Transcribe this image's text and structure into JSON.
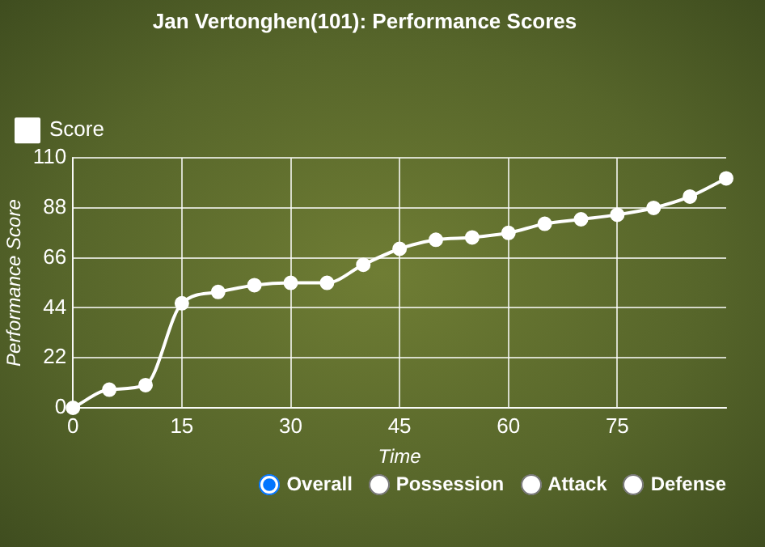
{
  "chart_data": {
    "type": "line",
    "title": "Jan Vertonghen(101): Performance Scores",
    "xlabel": "Time",
    "ylabel": "Performance Score",
    "x": [
      0,
      5,
      10,
      15,
      20,
      25,
      30,
      35,
      40,
      45,
      50,
      55,
      60,
      65,
      70,
      75,
      80,
      85,
      90
    ],
    "series": [
      {
        "name": "Score",
        "color": "#ffffff",
        "values": [
          0,
          8,
          10,
          46,
          51,
          54,
          55,
          55,
          63,
          70,
          74,
          75,
          77,
          81,
          83,
          85,
          88,
          93,
          101
        ]
      }
    ],
    "xlim": [
      0,
      90
    ],
    "xticks": [
      0,
      15,
      30,
      45,
      60,
      75
    ],
    "ylim": [
      0,
      110
    ],
    "yticks": [
      0,
      22,
      44,
      66,
      88,
      110
    ],
    "grid": true,
    "legend": "top left",
    "marker": "circle",
    "line_style": "solid",
    "annotations": [
      "Overall",
      "Possession",
      "Attack",
      "Defense"
    ]
  }
}
